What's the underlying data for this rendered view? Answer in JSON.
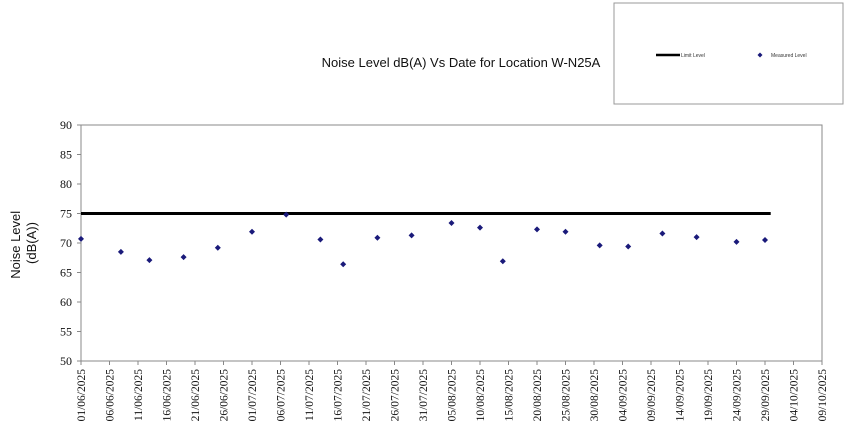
{
  "chart_data": {
    "type": "scatter",
    "title": "Noise Level dB(A) Vs Date for Location W-N25A",
    "xlabel": "",
    "ylabel_lines": [
      "Noise Level",
      "(dB(A))"
    ],
    "ylim": [
      50,
      90
    ],
    "yticks": [
      50,
      55,
      60,
      65,
      70,
      75,
      80,
      85,
      90
    ],
    "xlim": [
      "2025-06-01",
      "2025-10-09"
    ],
    "xticks": [
      "01/06/2025",
      "06/06/2025",
      "11/06/2025",
      "16/06/2025",
      "21/06/2025",
      "26/06/2025",
      "01/07/2025",
      "06/07/2025",
      "11/07/2025",
      "16/07/2025",
      "21/07/2025",
      "26/07/2025",
      "31/07/2025",
      "05/08/2025",
      "10/08/2025",
      "15/08/2025",
      "20/08/2025",
      "25/08/2025",
      "30/08/2025",
      "04/09/2025",
      "09/09/2025",
      "14/09/2025",
      "19/09/2025",
      "24/09/2025",
      "29/09/2025",
      "04/10/2025",
      "09/10/2025"
    ],
    "grid": false,
    "legend_position": "top-right",
    "series": [
      {
        "name": "Limit Level",
        "kind": "line",
        "color": "#000000",
        "x": [
          "2025-06-01",
          "2025-09-30"
        ],
        "y": [
          75,
          75
        ]
      },
      {
        "name": "Measured Level",
        "kind": "scatter",
        "color": "#1a1a7a",
        "x": [
          "2025-06-01",
          "2025-06-08",
          "2025-06-13",
          "2025-06-19",
          "2025-06-25",
          "2025-07-01",
          "2025-07-07",
          "2025-07-13",
          "2025-07-17",
          "2025-07-23",
          "2025-07-29",
          "2025-08-05",
          "2025-08-10",
          "2025-08-14",
          "2025-08-20",
          "2025-08-25",
          "2025-08-31",
          "2025-09-05",
          "2025-09-11",
          "2025-09-17",
          "2025-09-24",
          "2025-09-29"
        ],
        "y": [
          70.7,
          68.5,
          67.1,
          67.6,
          69.2,
          71.9,
          74.8,
          70.6,
          66.4,
          70.9,
          71.3,
          73.4,
          72.6,
          66.9,
          72.3,
          71.9,
          69.6,
          69.4,
          71.6,
          71.0,
          70.2,
          70.5
        ]
      }
    ]
  }
}
